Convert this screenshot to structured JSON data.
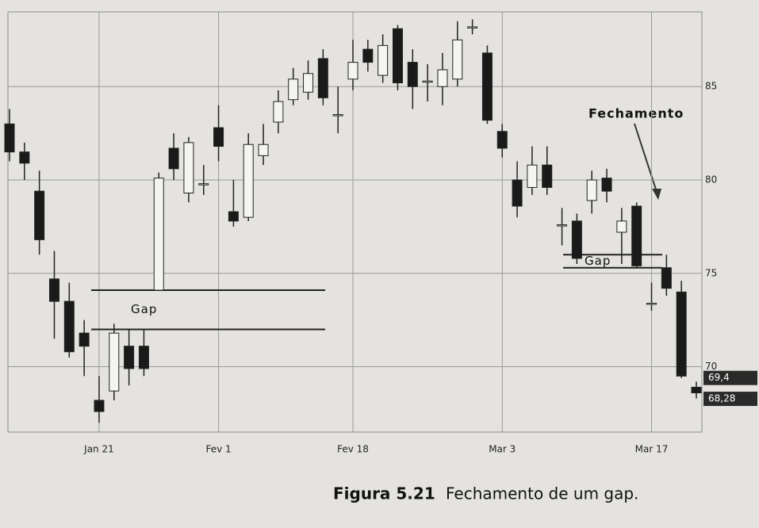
{
  "chart_data": {
    "type": "candlestick",
    "caption_label": "Figura 5.21",
    "caption_text": "Fechamento de um gap.",
    "annotation": "Fechamento",
    "categories": [
      null,
      null,
      null,
      null,
      null,
      null,
      "Jan 21",
      null,
      null,
      null,
      null,
      null,
      null,
      null,
      "Fev 1",
      null,
      null,
      null,
      null,
      null,
      null,
      null,
      null,
      "Fev 18",
      null,
      null,
      null,
      null,
      null,
      null,
      null,
      null,
      null,
      "Mar 3",
      null,
      null,
      null,
      null,
      null,
      null,
      null,
      null,
      null,
      "Mar 17",
      null,
      null,
      null
    ],
    "open": [
      83,
      81.5,
      79.4,
      74.7,
      73.5,
      71.8,
      68.2,
      68.7,
      71.1,
      71.1,
      74.1,
      81.7,
      79.3,
      79.8,
      82.8,
      78.3,
      78,
      81.3,
      83.1,
      84.3,
      84.7,
      86.5,
      83.5,
      85.4,
      87,
      85.6,
      88.1,
      86.3,
      85.3,
      85,
      85.4,
      88.2,
      86.8,
      82.6,
      80,
      79.6,
      80.8,
      77.6,
      77.8,
      78.9,
      80.1,
      77.2,
      78.6,
      73.4,
      75.3,
      74,
      68.9
    ],
    "close": [
      81.5,
      80.9,
      76.8,
      73.5,
      70.8,
      71.1,
      67.6,
      71.8,
      69.9,
      69.9,
      80.1,
      80.6,
      82,
      79.8,
      81.8,
      77.8,
      81.9,
      81.9,
      84.2,
      85.4,
      85.7,
      84.4,
      83.5,
      86.3,
      86.3,
      87.2,
      85.2,
      85,
      85.3,
      85.9,
      87.5,
      88.2,
      83.2,
      81.7,
      78.6,
      80.8,
      79.6,
      77.6,
      75.8,
      80,
      79.4,
      77.8,
      75.4,
      73.4,
      74.2,
      69.5,
      68.6
    ],
    "high": [
      83.8,
      82,
      80.5,
      76.2,
      74.5,
      72.5,
      69.5,
      72.3,
      72,
      72,
      80.4,
      82.5,
      82.3,
      80.8,
      84,
      80,
      82.5,
      83,
      84.8,
      86,
      86.4,
      87,
      85,
      87.5,
      87.5,
      87.8,
      88.3,
      87,
      86.2,
      86.8,
      88.5,
      88.6,
      87.2,
      83,
      81,
      81.8,
      81.8,
      78.5,
      78.2,
      80.5,
      80.6,
      78.5,
      78.8,
      74.5,
      76,
      74.6,
      69.2
    ],
    "low": [
      81,
      80,
      76,
      71.5,
      70.5,
      69.5,
      67,
      68.2,
      69,
      69.5,
      74.1,
      80,
      78.8,
      79.2,
      81,
      77.5,
      77.8,
      80.8,
      82.5,
      84,
      84.3,
      84,
      82.5,
      84.8,
      85.8,
      85.2,
      84.8,
      83.8,
      84.2,
      84,
      85,
      87.8,
      83,
      81.2,
      78,
      79.2,
      79.2,
      76.5,
      75.5,
      78.2,
      78.8,
      75.5,
      75.3,
      73,
      73.8,
      69.4,
      68.3
    ],
    "ylim": [
      66.5,
      89
    ],
    "yticks": [
      70,
      75,
      80,
      85
    ],
    "price_labels": [
      {
        "value": 69.4,
        "label": "69,4"
      },
      {
        "value": 68.28,
        "label": "68,28"
      }
    ],
    "gaps": [
      {
        "label": "Gap",
        "range": [
          72,
          74.1
        ]
      },
      {
        "label": "Gap",
        "range": [
          75.3,
          76
        ]
      }
    ],
    "grid": true
  }
}
